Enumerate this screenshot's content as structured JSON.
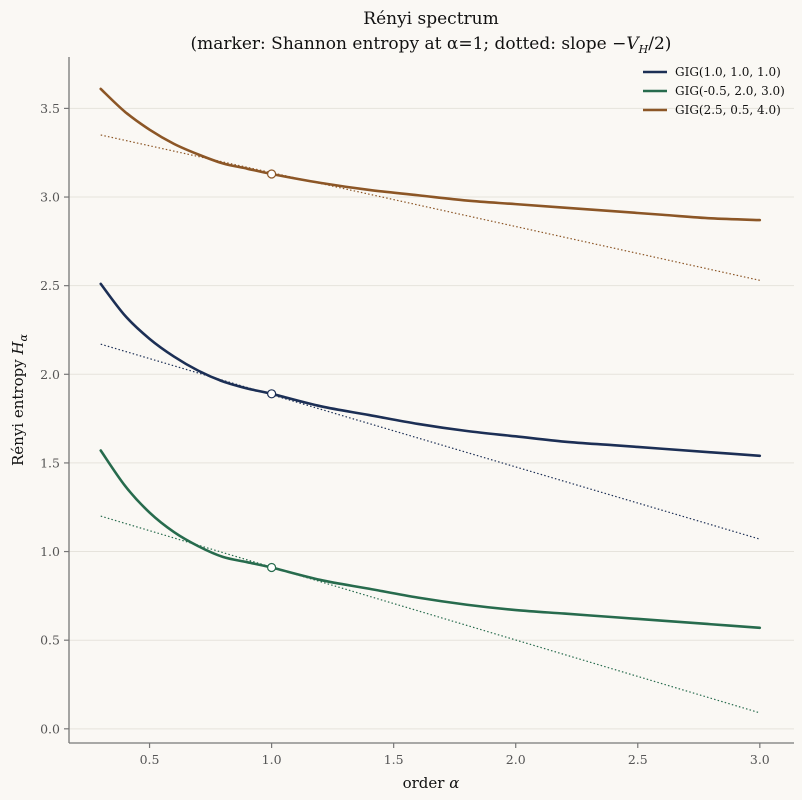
{
  "chart_data": {
    "type": "line",
    "title": "Rényi spectrum",
    "subtitle_prefix": "(marker: Shannon entropy at α=1; dotted: slope −",
    "subtitle_var": "V",
    "subtitle_sub": "H",
    "subtitle_suffix": "/2)",
    "xlabel_text": "order ",
    "xlabel_var": "α",
    "ylabel_text": "Rényi entropy ",
    "ylabel_var": "H",
    "ylabel_sub": "α",
    "xlim": [
      0.17,
      3.14
    ],
    "ylim": [
      -0.08,
      3.79
    ],
    "xticks": [
      0.5,
      1.0,
      1.5,
      2.0,
      2.5,
      3.0
    ],
    "xtick_labels": [
      "0.5",
      "1.0",
      "1.5",
      "2.0",
      "2.5",
      "3.0"
    ],
    "yticks": [
      0.0,
      0.5,
      1.0,
      1.5,
      2.0,
      2.5,
      3.0,
      3.5
    ],
    "ytick_labels": [
      "0.0",
      "0.5",
      "1.0",
      "1.5",
      "2.0",
      "2.5",
      "3.0",
      "3.5"
    ],
    "grid": "horizontal",
    "legend_position": "top-right",
    "x": [
      0.3,
      0.4,
      0.5,
      0.6,
      0.7,
      0.8,
      0.9,
      1.0,
      1.2,
      1.4,
      1.6,
      1.8,
      2.0,
      2.2,
      2.4,
      2.6,
      2.8,
      3.0
    ],
    "series": [
      {
        "name": "GIG(1.0, 1.0, 1.0)",
        "color": "#1c2f55",
        "values": [
          2.51,
          2.33,
          2.2,
          2.1,
          2.02,
          1.96,
          1.92,
          1.89,
          1.82,
          1.77,
          1.72,
          1.68,
          1.65,
          1.62,
          1.6,
          1.58,
          1.56,
          1.54
        ],
        "shannon": 1.89,
        "tangent_x": [
          0.3,
          3.0
        ],
        "tangent_y": [
          2.17,
          1.07
        ]
      },
      {
        "name": "GIG(-0.5, 2.0, 3.0)",
        "color": "#276b4d",
        "values": [
          1.57,
          1.37,
          1.22,
          1.11,
          1.03,
          0.97,
          0.94,
          0.91,
          0.84,
          0.79,
          0.74,
          0.7,
          0.67,
          0.65,
          0.63,
          0.61,
          0.59,
          0.57
        ],
        "shannon": 0.91,
        "tangent_x": [
          0.3,
          3.0
        ],
        "tangent_y": [
          1.2,
          0.09
        ]
      },
      {
        "name": "GIG(2.5, 0.5, 4.0)",
        "color": "#8c5626",
        "values": [
          3.61,
          3.48,
          3.38,
          3.3,
          3.24,
          3.19,
          3.16,
          3.13,
          3.08,
          3.04,
          3.01,
          2.98,
          2.96,
          2.94,
          2.92,
          2.9,
          2.88,
          2.87
        ],
        "shannon": 3.13,
        "tangent_x": [
          0.3,
          3.0
        ],
        "tangent_y": [
          3.35,
          2.53
        ]
      }
    ]
  }
}
